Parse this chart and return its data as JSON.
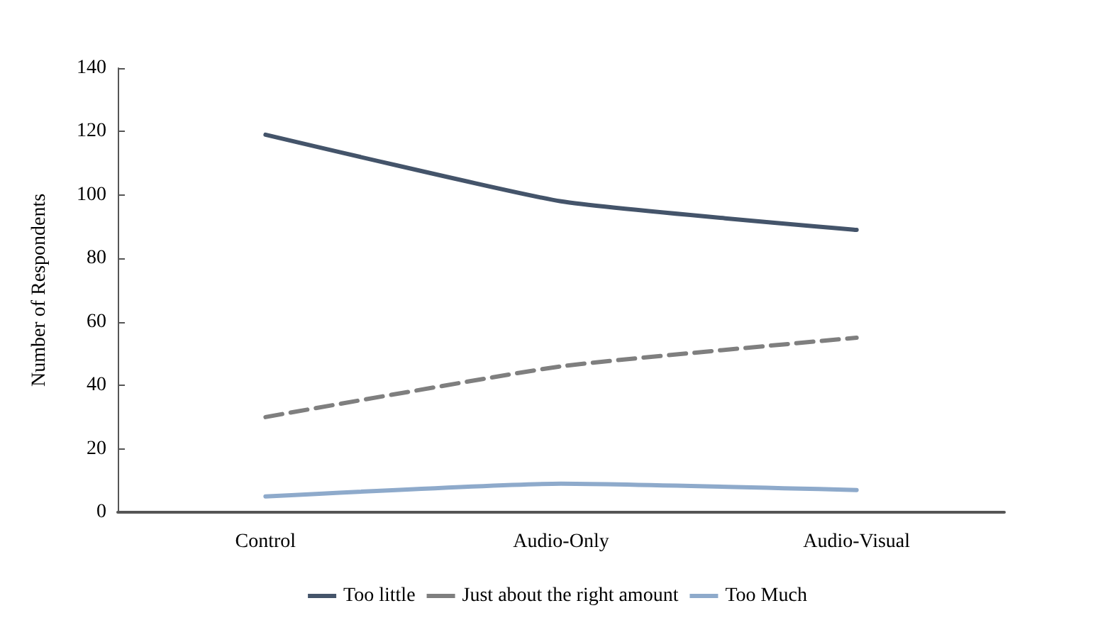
{
  "chart_data": {
    "type": "line",
    "ylabel": "Number of Respondents",
    "categories": [
      "Control",
      "Audio-Only",
      "Audio-Visual"
    ],
    "series": [
      {
        "name": "Too little",
        "color": "#44546a",
        "values": [
          119,
          98,
          89
        ]
      },
      {
        "name": "Just about the right amount",
        "color": "#7f7f7f",
        "values": [
          30,
          46,
          55
        ],
        "line_style": "dashed"
      },
      {
        "name": "Too Much",
        "color": "#8eaacb",
        "values": [
          5,
          9,
          7
        ]
      }
    ],
    "ylim": [
      0,
      140
    ],
    "yticks": [
      0,
      20,
      40,
      60,
      80,
      100,
      120,
      140
    ],
    "grid": false,
    "legend": "bottom",
    "marker": "none",
    "line_style": "solid"
  }
}
